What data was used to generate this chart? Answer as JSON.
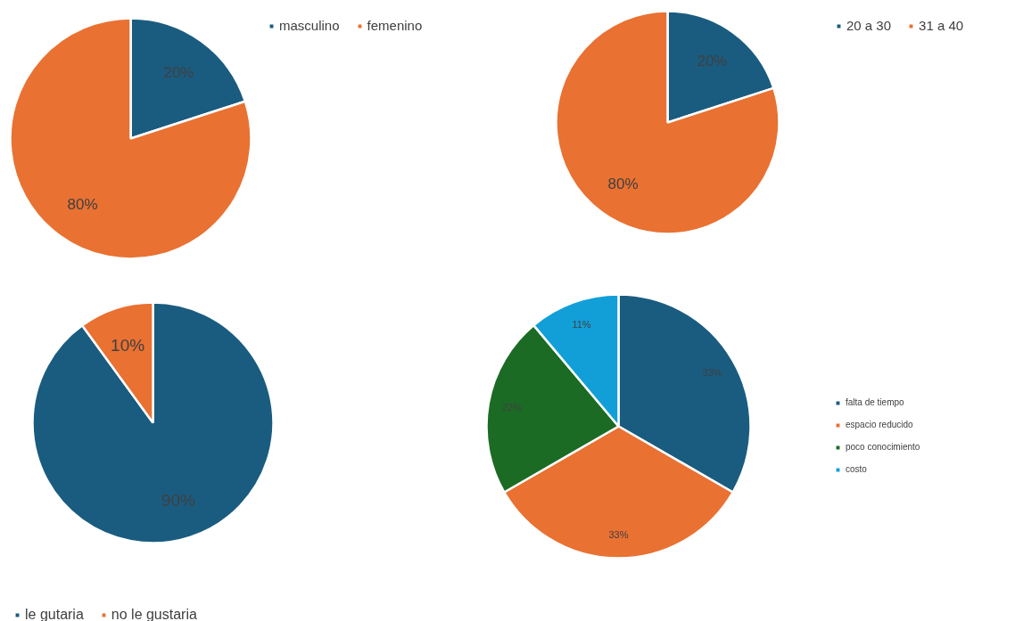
{
  "chart_data": [
    {
      "type": "pie",
      "categories": [
        "masculino",
        "femenino"
      ],
      "values": [
        20,
        80
      ],
      "colors": [
        "#1a5c80",
        "#e97132"
      ],
      "value_labels": [
        "20%",
        "80%"
      ],
      "legend": "top right"
    },
    {
      "type": "pie",
      "categories": [
        "20 a 30",
        "31 a 40"
      ],
      "values": [
        20,
        80
      ],
      "colors": [
        "#1a5c80",
        "#e97132"
      ],
      "value_labels": [
        "20%",
        "80%"
      ],
      "legend": "top right"
    },
    {
      "type": "pie",
      "categories": [
        "le gutaria",
        "no le gustaria"
      ],
      "values": [
        90,
        10
      ],
      "colors": [
        "#1a5c80",
        "#e97132"
      ],
      "value_labels": [
        "90%",
        "10%"
      ],
      "legend": "bottom left"
    },
    {
      "type": "pie",
      "categories": [
        "falta de tiempo",
        "espacio reducido",
        "poco conocimiento",
        "costo"
      ],
      "values": [
        33,
        33,
        22,
        11
      ],
      "colors": [
        "#1a5c80",
        "#e97132",
        "#1b6b25",
        "#129fd8"
      ],
      "value_labels": [
        "33%",
        "33%",
        "22%",
        "11%"
      ],
      "legend": "right"
    }
  ]
}
